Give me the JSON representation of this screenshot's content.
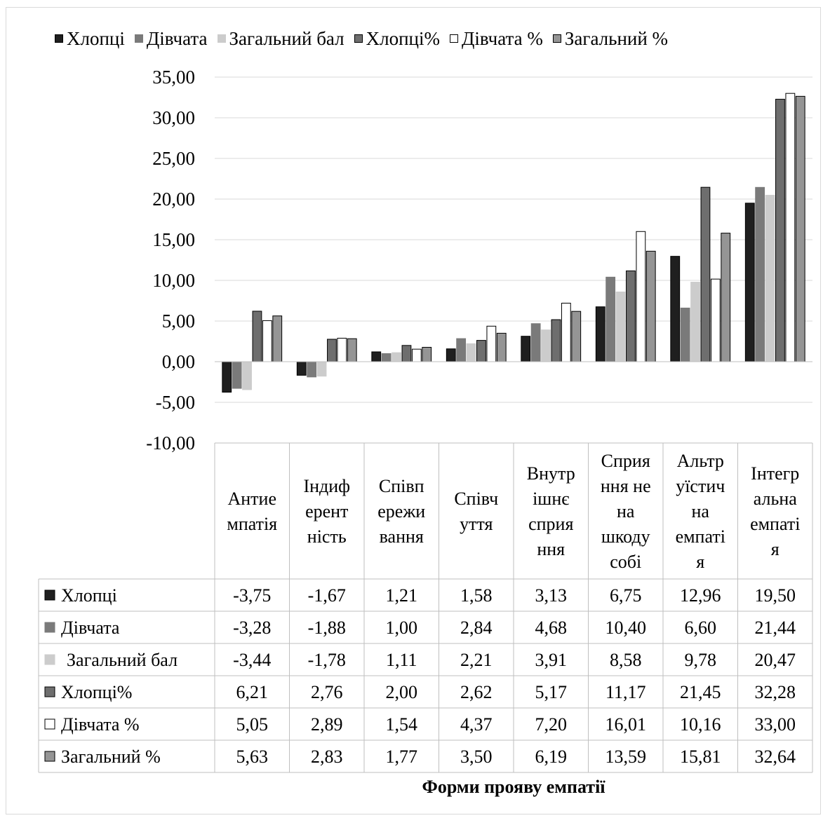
{
  "chart_data": {
    "type": "bar",
    "title": "",
    "xlabel": "Форми прояву емпатії",
    "ylabel": "",
    "ylim": [
      -10,
      35
    ],
    "yticks": [
      "35,00",
      "30,00",
      "25,00",
      "20,00",
      "15,00",
      "10,00",
      "5,00",
      "0,00",
      "-5,00",
      "-10,00"
    ],
    "ytick_values": [
      35,
      30,
      25,
      20,
      15,
      10,
      5,
      0,
      -5,
      -10
    ],
    "grid": true,
    "legend_position": "top",
    "data_table": true,
    "categories": [
      [
        "Антие",
        "мпатія"
      ],
      [
        "Індиф",
        "ерент",
        "ність"
      ],
      [
        "Співп",
        "ережи",
        "вання"
      ],
      [
        "Співч",
        "уття"
      ],
      [
        "Внутр",
        "ішнє",
        "сприя",
        "ння"
      ],
      [
        "Сприя",
        "ння не",
        "на",
        "шкоду",
        "собі"
      ],
      [
        "Альтр",
        "уїстич",
        "на",
        "емпаті",
        "я"
      ],
      [
        "Інтегр",
        "альна",
        "емпаті",
        "я"
      ]
    ],
    "series": [
      {
        "name": "Хлопці",
        "fill": "#1f1f1f",
        "stroke": "#000000",
        "values": [
          -3.75,
          -1.67,
          1.21,
          1.58,
          3.13,
          6.75,
          12.96,
          19.5
        ],
        "labels": [
          "-3,75",
          "-1,67",
          "1,21",
          "1,58",
          "3,13",
          "6,75",
          "12,96",
          "19,50"
        ]
      },
      {
        "name": "Дівчата",
        "fill": "#7a7a7a",
        "stroke": "#7a7a7a",
        "values": [
          -3.28,
          -1.88,
          1.0,
          2.84,
          4.68,
          10.4,
          6.6,
          21.44
        ],
        "labels": [
          "-3,28",
          "-1,88",
          "1,00",
          "2,84",
          "4,68",
          "10,40",
          "6,60",
          "21,44"
        ]
      },
      {
        "name": "Загальний бал",
        "fill": "#cccccc",
        "stroke": "#cccccc",
        "values": [
          -3.44,
          -1.78,
          1.11,
          2.21,
          3.91,
          8.58,
          9.78,
          20.47
        ],
        "labels": [
          "-3,44",
          "-1,78",
          "1,11",
          "2,21",
          "3,91",
          "8,58",
          "9,78",
          "20,47"
        ]
      },
      {
        "name": "Хлопці%",
        "fill": "#6e6e6e",
        "stroke": "#000000",
        "values": [
          6.21,
          2.76,
          2.0,
          2.62,
          5.17,
          11.17,
          21.45,
          32.28
        ],
        "labels": [
          "6,21",
          "2,76",
          "2,00",
          "2,62",
          "5,17",
          "11,17",
          "21,45",
          "32,28"
        ]
      },
      {
        "name": "Дівчата %",
        "fill": "#ffffff",
        "stroke": "#000000",
        "values": [
          5.05,
          2.89,
          1.54,
          4.37,
          7.2,
          16.01,
          10.16,
          33.0
        ],
        "labels": [
          "5,05",
          "2,89",
          "1,54",
          "4,37",
          "7,20",
          "16,01",
          "10,16",
          "33,00"
        ]
      },
      {
        "name": "Загальний %",
        "fill": "#959595",
        "stroke": "#000000",
        "values": [
          5.63,
          2.83,
          1.77,
          3.5,
          6.19,
          13.59,
          15.81,
          32.64
        ],
        "labels": [
          "5,63",
          "2,83",
          "1,77",
          "3,50",
          "6,19",
          "13,59",
          "15,81",
          "32,64"
        ]
      }
    ]
  }
}
